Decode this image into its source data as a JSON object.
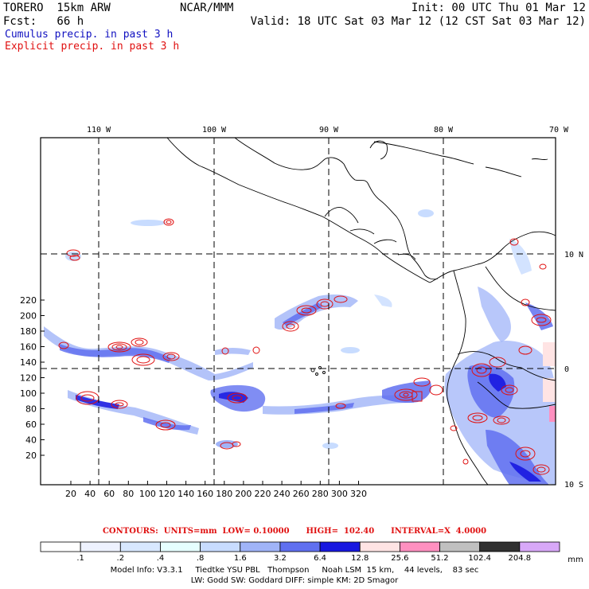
{
  "header": {
    "model": "TORERO  15km ARW",
    "org": "NCAR/MMM",
    "init": "Init: 00 UTC Thu 01 Mar 12",
    "fcst": "Fcst:   66 h",
    "valid": "Valid: 18 UTC Sat 03 Mar 12 (12 CST Sat 03 Mar 12)",
    "field1": "Cumulus precip. in past 3 h",
    "field2": "Explicit precip. in past 3 h"
  },
  "colors": {
    "cumulus": "#1010c0",
    "explicit": "#e01010"
  },
  "map": {
    "lon_labels": [
      "110 W",
      "100 W",
      "90 W",
      "80 W",
      "70 W"
    ],
    "lat_labels": [
      "10 N",
      "0",
      "10 S"
    ],
    "x_ticks": [
      "20",
      "40",
      "60",
      "80",
      "100",
      "120",
      "140",
      "160",
      "180",
      "200",
      "220",
      "240",
      "260",
      "280",
      "300",
      "320"
    ],
    "y_ticks": [
      "20",
      "40",
      "60",
      "80",
      "100",
      "120",
      "140",
      "160",
      "180",
      "200",
      "220"
    ]
  },
  "colorbar": {
    "labels": [
      ".1",
      ".2",
      ".4",
      ".8",
      "1.6",
      "3.2",
      "6.4",
      "12.8",
      "25.6",
      "51.2",
      "102.4",
      "204.8"
    ],
    "colors": [
      "#ffffff",
      "#eef2ff",
      "#d8e8ff",
      "#e6ffff",
      "#c8dcff",
      "#a0b4f8",
      "#6070f0",
      "#1818e0",
      "#ffe4e4",
      "#ff90c0",
      "#c0c0c0",
      "#303030",
      "#d8a8f8"
    ],
    "units": "mm"
  },
  "footer": {
    "contours": "CONTOURS:  UNITS=mm  LOW= 0.10000      HIGH=  102.40      INTERVAL=X  4.0000",
    "info1": "Model Info: V3.3.1     Tiedtke YSU PBL   Thompson     Noah LSM  15 km,    44 levels,    83 sec",
    "info2": "LW: Godd SW: Goddard DIFF: simple KM: 2D Smagor"
  }
}
